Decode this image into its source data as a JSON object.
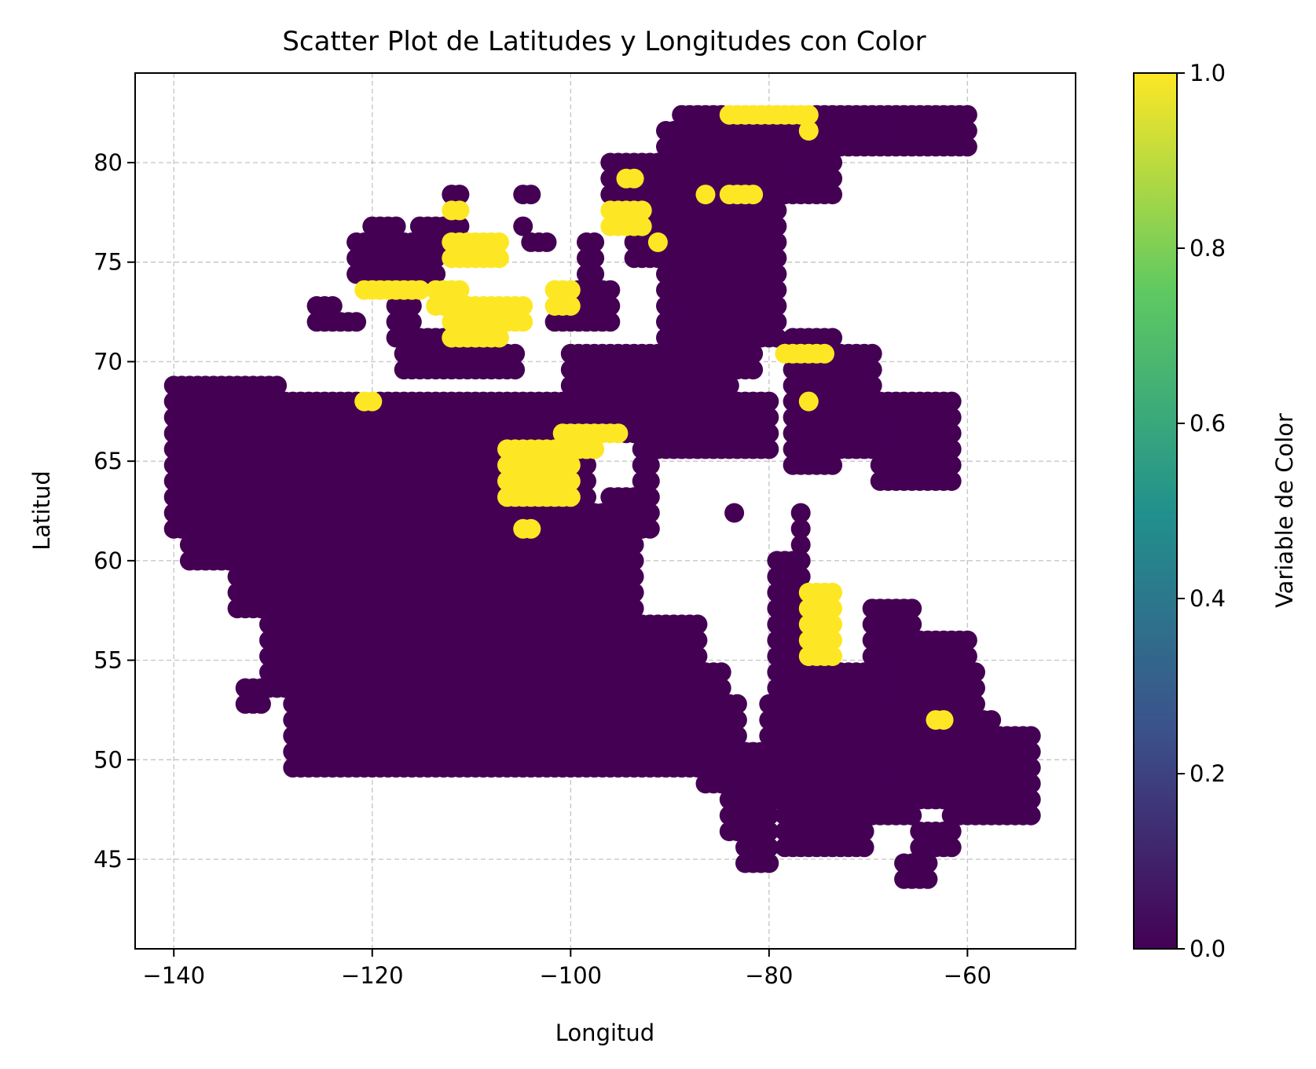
{
  "chart_data": {
    "type": "scatter",
    "title": "Scatter Plot de Latitudes y Longitudes con Color",
    "xlabel": "Longitud",
    "ylabel": "Latitud",
    "xlim": [
      -143.9,
      -49.1
    ],
    "ylim": [
      40.5,
      84.5
    ],
    "xticks": [
      -140,
      -120,
      -100,
      -80,
      -60
    ],
    "xtick_labels": [
      "−140",
      "−120",
      "−100",
      "−80",
      "−60"
    ],
    "yticks": [
      45,
      50,
      55,
      60,
      65,
      70,
      75,
      80
    ],
    "ytick_labels": [
      "45",
      "50",
      "55",
      "60",
      "65",
      "70",
      "75",
      "80"
    ],
    "grid": true,
    "grid_style": "dashed",
    "colormap": "viridis",
    "colorbar": {
      "label": "Variable de Color",
      "range": [
        0.0,
        1.0
      ],
      "ticks": [
        0.0,
        0.2,
        0.4,
        0.6,
        0.8,
        1.0
      ],
      "tick_labels": [
        "0.0",
        "0.2",
        "0.4",
        "0.6",
        "0.8",
        "1.0"
      ]
    },
    "grid_spacing_deg": 0.8,
    "color_scale": [
      "#440154",
      "#3b528b",
      "#21918c",
      "#5ec962",
      "#fde725"
    ],
    "low_value_color": "#440154",
    "high_value_color": "#fde725",
    "mainland_fill": [
      [
        61.2,
        69.4,
        -140,
        -138
      ],
      [
        61.2,
        68.8,
        -138,
        -129
      ],
      [
        59.8,
        62.0,
        -138.5,
        -125
      ],
      [
        57.5,
        68.0,
        -134,
        -129
      ],
      [
        56.0,
        68.5,
        -129,
        -124
      ],
      [
        55.0,
        68.0,
        -126,
        -122
      ],
      [
        51.0,
        67.5,
        -123.5,
        -118
      ],
      [
        53.0,
        61.0,
        -131,
        -126
      ],
      [
        49.3,
        56.0,
        -128,
        -123
      ],
      [
        49.3,
        68.5,
        -123,
        -104
      ],
      [
        49.3,
        63.0,
        -104,
        -96
      ],
      [
        52.0,
        61.0,
        -96,
        -93
      ],
      [
        49.0,
        57.0,
        -96,
        -87
      ],
      [
        48.6,
        55.5,
        -87,
        -84
      ],
      [
        46.2,
        54.0,
        -84,
        -82
      ],
      [
        48.0,
        56.5,
        -82,
        -78.8
      ],
      [
        45.0,
        55.0,
        -78.8,
        -73
      ],
      [
        45.0,
        54.5,
        -73,
        -70
      ],
      [
        46.8,
        58.2,
        -70,
        -65
      ],
      [
        48.0,
        56.5,
        -65,
        -60
      ],
      [
        50.6,
        55.0,
        -60,
        -59
      ],
      [
        58.2,
        68.2,
        -104,
        -98
      ],
      [
        56.0,
        63.5,
        -96,
        -93
      ]
    ],
    "islands_low": [
      [
        69.8,
        70.2,
        -131,
        -124
      ],
      [
        72.4,
        73.0,
        -125.8,
        -123.5
      ],
      [
        71.8,
        72.4,
        -126,
        -121
      ],
      [
        73.8,
        76.5,
        -122,
        -113
      ],
      [
        72.0,
        74.0,
        -118,
        -116
      ],
      [
        70.8,
        71.8,
        -118,
        -110
      ],
      [
        69.0,
        70.6,
        -117,
        -105
      ],
      [
        75.5,
        76.8,
        -115.5,
        -110.5
      ],
      [
        77.7,
        78.4,
        -112,
        -111
      ],
      [
        78.0,
        78.6,
        -105,
        -104
      ],
      [
        76.2,
        77.0,
        -120,
        -118.5
      ],
      [
        76.8,
        77.1,
        -119.5,
        -117
      ],
      [
        66.4,
        70.8,
        -100.5,
        -92
      ],
      [
        72.0,
        74.0,
        -102,
        -95.5
      ],
      [
        73.4,
        76.0,
        -98.5,
        -97
      ],
      [
        75.5,
        76.4,
        -104,
        -102
      ],
      [
        76.2,
        76.8,
        -105.5,
        -104.2
      ],
      [
        69.5,
        74.0,
        -90,
        -81
      ],
      [
        65.5,
        71.0,
        -92,
        -85.5
      ],
      [
        63.2,
        68.0,
        -89,
        -80
      ],
      [
        61.5,
        67.5,
        -93.5,
        -91
      ],
      [
        67.0,
        70.0,
        -87,
        -84
      ],
      [
        71.0,
        81.8,
        -91,
        -79
      ],
      [
        75.0,
        78.4,
        -94,
        -90
      ],
      [
        76.4,
        80.5,
        -96,
        -88
      ],
      [
        80.5,
        82.5,
        -89,
        -60
      ],
      [
        78.4,
        82.0,
        -80,
        -73
      ],
      [
        79.5,
        80.8,
        -83,
        -80
      ],
      [
        81.0,
        81.7,
        -90.5,
        -87.5
      ],
      [
        64.6,
        71.4,
        -78,
        -73
      ],
      [
        65.0,
        70.6,
        -74,
        -69
      ],
      [
        64.0,
        68.0,
        -69,
        -61.5
      ],
      [
        64.8,
        65.6,
        -78,
        -75
      ],
      [
        64.0,
        65.0,
        -68,
        -64
      ],
      [
        52.0,
        62.5,
        -79.5,
        -76.5
      ],
      [
        49.0,
        53.5,
        -79.5,
        -77
      ],
      [
        44.5,
        49.5,
        -82.8,
        -79.5
      ],
      [
        49.0,
        50.0,
        -66,
        -63.5
      ],
      [
        47.0,
        49.5,
        -62,
        -60.5
      ],
      [
        46.5,
        51.8,
        -58,
        -53.2
      ],
      [
        47.0,
        52.5,
        -60,
        -57
      ],
      [
        45.3,
        46.5,
        -65,
        -61.5
      ],
      [
        43.8,
        45.5,
        -67,
        -63.5
      ],
      [
        52.5,
        54.0,
        -133,
        -131
      ],
      [
        61.5,
        64.5,
        -112,
        -109
      ],
      [
        66.8,
        68.5,
        -109,
        -105
      ]
    ],
    "islands_high": [
      [
        74.0,
        74.3,
        -124,
        -120
      ],
      [
        73.4,
        74.0,
        -121.5,
        -115.2
      ],
      [
        72.6,
        73.6,
        -114,
        -111
      ],
      [
        70.6,
        73.0,
        -112.2,
        -106.5
      ],
      [
        71.5,
        73.5,
        -108,
        -104.5
      ],
      [
        75.2,
        76.4,
        -112,
        -107
      ],
      [
        76.2,
        76.3,
        -104.8,
        -99.5
      ],
      [
        77.4,
        78.0,
        -112.5,
        -110.5
      ],
      [
        74.8,
        75.2,
        -112.5,
        -111.5
      ],
      [
        72.4,
        73.6,
        -101.8,
        -99.5
      ],
      [
        76.6,
        77.6,
        -96.5,
        -92.5
      ],
      [
        78.8,
        79.2,
        -95,
        -93
      ],
      [
        75.8,
        76.3,
        -91.5,
        -90.5
      ],
      [
        77.8,
        78.3,
        -91.2,
        -90.5
      ],
      [
        78.1,
        78.5,
        -87,
        -86
      ],
      [
        78.0,
        78.5,
        -84.2,
        -81.5
      ],
      [
        81.8,
        82.6,
        -84,
        -76
      ],
      [
        81.0,
        82.0,
        -76.8,
        -76
      ],
      [
        69.8,
        70.8,
        -79,
        -74
      ],
      [
        67.6,
        68.2,
        -76.4,
        -75.4
      ],
      [
        62.8,
        65.6,
        -106.5,
        -100
      ],
      [
        65.4,
        66.4,
        -101,
        -97.5
      ],
      [
        66.2,
        66.6,
        -98.5,
        -94.5
      ],
      [
        61.5,
        62.2,
        -104.8,
        -104
      ],
      [
        54.8,
        59.0,
        -76.2,
        -73.2
      ],
      [
        51.6,
        52.2,
        -63.6,
        -62.4
      ],
      [
        67.6,
        68.1,
        -121,
        -120
      ]
    ],
    "lakes_removed": [
      [
        57.5,
        65.0,
        -92,
        -79.4
      ],
      [
        55.0,
        57.5,
        -87,
        -79.4
      ],
      [
        53.5,
        55.0,
        -84.3,
        -79.4
      ],
      [
        51.0,
        53.5,
        -82.4,
        -80.4
      ],
      [
        60.5,
        63.8,
        -79.5,
        -77.5
      ]
    ],
    "isolated_points": [
      [
        -83.5,
        62.4
      ],
      [
        -132.6,
        53.5
      ],
      [
        -84.8,
        48.8
      ]
    ]
  }
}
